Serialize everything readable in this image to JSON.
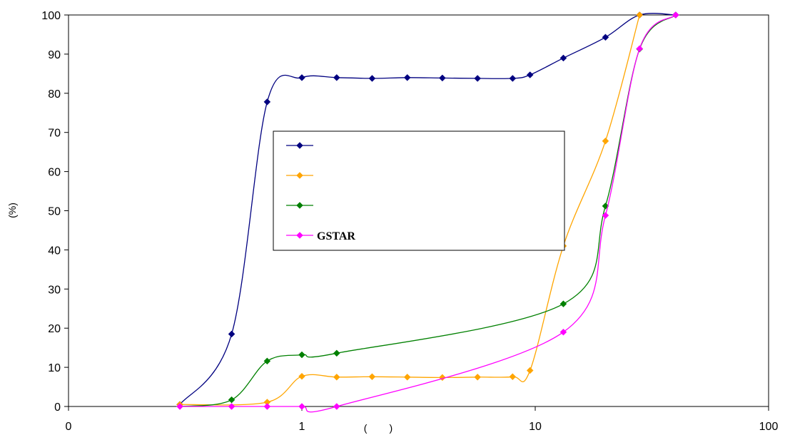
{
  "chart_data": {
    "type": "line",
    "x_scale": "log",
    "xlim": [
      0.1,
      100
    ],
    "ylim": [
      0,
      100
    ],
    "x_ticks": [
      {
        "value": 0.1,
        "label": "0"
      },
      {
        "value": 1,
        "label": "1"
      },
      {
        "value": 10,
        "label": "10"
      },
      {
        "value": 100,
        "label": "100"
      }
    ],
    "y_ticks": [
      0,
      10,
      20,
      30,
      40,
      50,
      60,
      70,
      80,
      90,
      100
    ],
    "xlabel": "(        )",
    "ylabel": "(%)",
    "grid": false,
    "legend": "center-left",
    "series": [
      {
        "name": "",
        "color": "#000080",
        "x": [
          0.3,
          0.5,
          0.71,
          1.0,
          1.41,
          2.0,
          2.83,
          4.0,
          5.66,
          8.0,
          9.5,
          13.2,
          20,
          28,
          40
        ],
        "y": [
          0.5,
          18.5,
          77.8,
          84,
          84,
          83.8,
          84,
          83.9,
          83.8,
          83.8,
          84.7,
          89,
          94.3,
          100,
          100
        ]
      },
      {
        "name": "",
        "color": "#FFA500",
        "x": [
          0.3,
          0.71,
          1.0,
          1.41,
          2.0,
          2.83,
          4.0,
          5.66,
          8.0,
          9.5,
          13.2,
          20,
          28
        ],
        "y": [
          0.5,
          1.1,
          7.7,
          7.5,
          7.6,
          7.5,
          7.4,
          7.5,
          7.6,
          9.2,
          41,
          67.8,
          100
        ]
      },
      {
        "name": "",
        "color": "#008000",
        "x": [
          0.3,
          0.5,
          0.71,
          1.0,
          1.41,
          13.2,
          20,
          28,
          40
        ],
        "y": [
          0,
          1.7,
          11.6,
          13.2,
          13.6,
          26.2,
          51.2,
          91.3,
          100
        ]
      },
      {
        "name": "GSTAR",
        "color": "#FF00FF",
        "x": [
          0.3,
          0.5,
          0.71,
          1.0,
          1.41,
          13.2,
          20,
          28,
          40
        ],
        "y": [
          0,
          0,
          0,
          0,
          0,
          19,
          48.8,
          91.4,
          100
        ]
      }
    ]
  }
}
